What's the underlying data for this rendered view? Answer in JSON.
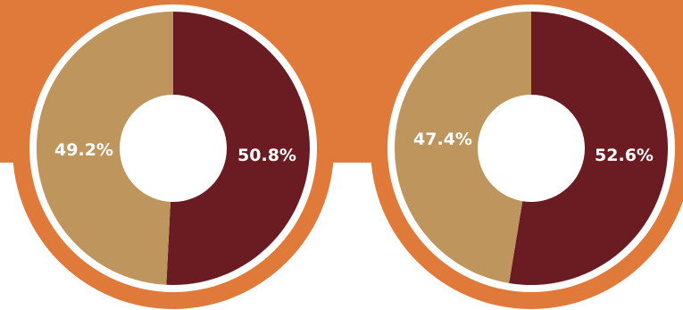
{
  "colors": {
    "banner": "#E07A3A",
    "ring": "#E07A3A",
    "border": "#FFFFFF",
    "hole": "#FFFFFF",
    "dark_slice": "#6A1C22",
    "light_slice": "#BD955D",
    "label": "#FFFFFF"
  },
  "chart_data": [
    {
      "type": "pie",
      "donut": true,
      "slices": [
        {
          "value": 50.8,
          "label": "50.8%",
          "color": "#6A1C22"
        },
        {
          "value": 49.2,
          "label": "49.2%",
          "color": "#BD955D"
        }
      ]
    },
    {
      "type": "pie",
      "donut": true,
      "slices": [
        {
          "value": 52.6,
          "label": "52.6%",
          "color": "#6A1C22"
        },
        {
          "value": 47.4,
          "label": "47.4%",
          "color": "#BD955D"
        }
      ]
    }
  ]
}
